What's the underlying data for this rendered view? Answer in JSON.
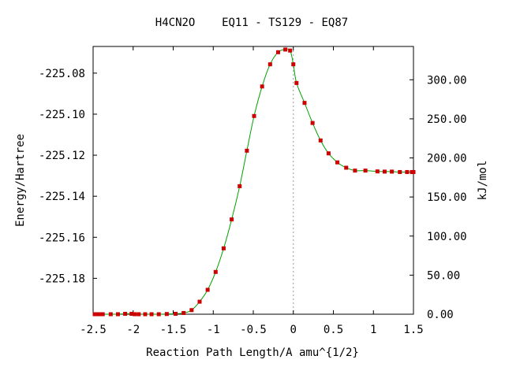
{
  "chart_data": {
    "type": "line",
    "title": "H4CN2O    EQ11 - TS129 - EQ87",
    "xlabel": "Reaction Path Length/A amu^{1/2}",
    "ylabel_left": "Energy/Hartree",
    "ylabel_right": "kJ/mol",
    "xlim": [
      -2.5,
      1.5
    ],
    "ylim_left": [
      -225.1975,
      -225.067
    ],
    "ylim_right": [
      0.0,
      342.6
    ],
    "x_ticks": [
      -2.5,
      -2,
      -1.5,
      -1,
      -0.5,
      0,
      0.5,
      1,
      1.5
    ],
    "x_tick_labels": [
      "-2.5",
      "-2",
      "-1.5",
      "-1",
      "-0.5",
      "0",
      "0.5",
      "1",
      "1.5"
    ],
    "y_left_ticks": [
      -225.08,
      -225.1,
      -225.12,
      -225.14,
      -225.16,
      -225.18
    ],
    "y_left_tick_labels": [
      "-225.08",
      "-225.10",
      "-225.12",
      "-225.14",
      "-225.16",
      "-225.18"
    ],
    "y_right_ticks": [
      300,
      250,
      200,
      150,
      100,
      50,
      0
    ],
    "y_right_tick_labels": [
      "300.00",
      "250.00",
      "200.00",
      "150.00",
      "100.00",
      "50.00",
      "0.00"
    ],
    "ts_line_x": 0,
    "grid": false,
    "colors": {
      "line": "#00a000",
      "marker": "#cc0000",
      "ts_line": "#999999",
      "axis": "#000000"
    },
    "series": [
      {
        "x": [
          -2.48,
          -2.45,
          -2.42,
          -2.38,
          -2.28,
          -2.19,
          -2.1,
          -2.02,
          -1.98,
          -1.93,
          -1.85,
          -1.77,
          -1.68,
          -1.58,
          -1.47,
          -1.37,
          -1.27,
          -1.17,
          -1.07,
          -0.97,
          -0.87,
          -0.77,
          -0.67,
          -0.58,
          -0.49,
          -0.39,
          -0.29,
          -0.19,
          -0.1,
          -0.04,
          0.0,
          0.04,
          0.14,
          0.24,
          0.34,
          0.44,
          0.55,
          0.66,
          0.77,
          0.9,
          1.05,
          1.14,
          1.23,
          1.33,
          1.42,
          1.48,
          1.5
        ],
        "y": [
          -225.1975,
          -225.1975,
          -225.1975,
          -225.1975,
          -225.1975,
          -225.1975,
          -225.1973,
          -225.1973,
          -225.1975,
          -225.1975,
          -225.1975,
          -225.1975,
          -225.1975,
          -225.1974,
          -225.1973,
          -225.1969,
          -225.1955,
          -225.1914,
          -225.1856,
          -225.1769,
          -225.1654,
          -225.1513,
          -225.1351,
          -225.1178,
          -225.1009,
          -225.0865,
          -225.0757,
          -225.0698,
          -225.0685,
          -225.069,
          -225.0757,
          -225.0848,
          -225.0945,
          -225.1043,
          -225.1128,
          -225.1191,
          -225.1235,
          -225.1261,
          -225.1275,
          -225.1275,
          -225.1279,
          -225.128,
          -225.128,
          -225.1282,
          -225.1282,
          -225.1282,
          -225.1282
        ]
      }
    ]
  }
}
